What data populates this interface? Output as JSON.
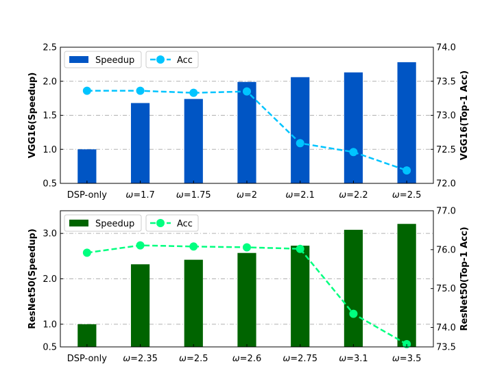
{
  "chart_data": [
    {
      "type": "bar+line",
      "title": "",
      "categories": [
        "DSP-only",
        "ω=1.7",
        "ω=1.75",
        "ω=2",
        "ω=2.1",
        "ω=2.2",
        "ω=2.5"
      ],
      "ylabel_left": "VGG16(Speedup)",
      "ylabel_right": "VGG16(Top-1 Acc)",
      "ylim_left": [
        0.5,
        2.5
      ],
      "yticks_left": [
        "0.5",
        "1.0",
        "1.5",
        "2.0",
        "2.5"
      ],
      "ylim_right": [
        72.0,
        74.0
      ],
      "yticks_right": [
        "72.0",
        "72.5",
        "73.0",
        "73.5",
        "74.0"
      ],
      "grid": "horizontal dash-dot",
      "legend_position": "top-left",
      "series": [
        {
          "name": "Speedup",
          "kind": "bar",
          "axis": "left",
          "color": "#0055c4",
          "values": [
            1.0,
            1.68,
            1.74,
            1.99,
            2.06,
            2.13,
            2.28
          ]
        },
        {
          "name": "Acc",
          "kind": "line",
          "axis": "right",
          "color": "#00c4ff",
          "values": [
            73.36,
            73.36,
            73.33,
            73.35,
            72.59,
            72.46,
            72.19
          ]
        }
      ]
    },
    {
      "type": "bar+line",
      "title": "",
      "categories": [
        "DSP-only",
        "ω=2.35",
        "ω=2.5",
        "ω=2.6",
        "ω=2.75",
        "ω=3.1",
        "ω=3.5"
      ],
      "ylabel_left": "ResNet50(Speedup)",
      "ylabel_right": "ResNet50(Top-1 Acc)",
      "ylim_left": [
        0.5,
        3.5
      ],
      "yticks_left": [
        "0.5",
        "1.0",
        "2.0",
        "3.0"
      ],
      "ylim_right": [
        73.5,
        77.0
      ],
      "yticks_right": [
        "73.5",
        "74.0",
        "75.0",
        "76.0",
        "77.0"
      ],
      "grid": "horizontal dash-dot",
      "legend_position": "top-left",
      "series": [
        {
          "name": "Speedup",
          "kind": "bar",
          "axis": "left",
          "color": "#006400",
          "values": [
            1.0,
            2.32,
            2.42,
            2.57,
            2.73,
            3.08,
            3.21
          ]
        },
        {
          "name": "Acc",
          "kind": "line",
          "axis": "right",
          "color": "#00ff7f",
          "values": [
            75.92,
            76.11,
            76.08,
            76.06,
            76.02,
            74.35,
            73.57
          ]
        }
      ]
    }
  ]
}
